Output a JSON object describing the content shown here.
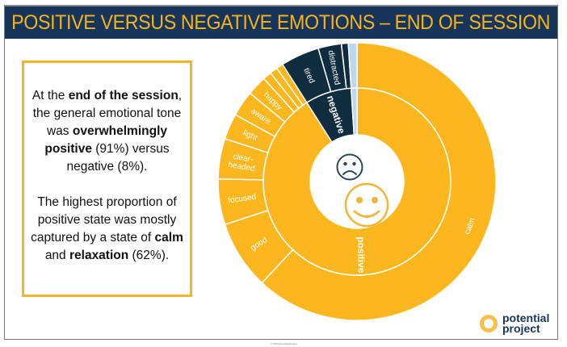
{
  "slide": {
    "title": "POSITIVE VERSUS NEGATIVE EMOTIONS – END OF SESSION",
    "footer": "© 20XX Potential Project",
    "logo": {
      "line1": "potential",
      "line2": "project"
    }
  },
  "summary": {
    "p1": [
      {
        "text": "At the ",
        "bold": false
      },
      {
        "text": "end of the session",
        "bold": true
      },
      {
        "text": ", the general emotional tone was ",
        "bold": false
      },
      {
        "text": "overwhelmingly positive",
        "bold": true
      },
      {
        "text": " (91%) versus negative (8%).",
        "bold": false
      }
    ],
    "p2": [
      {
        "text": "The highest proportion of positive state was mostly captured by a state of ",
        "bold": false
      },
      {
        "text": "calm",
        "bold": true
      },
      {
        "text": " and ",
        "bold": false
      },
      {
        "text": "relaxation",
        "bold": true
      },
      {
        "text": " (62%).",
        "bold": false
      }
    ]
  },
  "colors": {
    "positive": "#fdb71e",
    "negative": "#0f2d3e",
    "other": "#bcd7ee",
    "title_bg": "#17355a",
    "title_text": "#f5b41c",
    "accent_border": "#f7b526"
  },
  "chart_data": {
    "type": "sunburst",
    "title": "Positive versus negative emotions – end of session",
    "center_icons": [
      "sad-face",
      "happy-face"
    ],
    "inner_ring": [
      {
        "label": "positive",
        "value": 91,
        "color": "#fdb71e"
      },
      {
        "label": "negative",
        "value": 8,
        "color": "#0f2d3e"
      },
      {
        "label": "",
        "value": 1,
        "color": "#bcd7ee"
      }
    ],
    "outer_ring": [
      {
        "label": "calm",
        "value": 62,
        "parent": "positive"
      },
      {
        "label": "good",
        "value": 8,
        "parent": "positive"
      },
      {
        "label": "focused",
        "value": 5.3,
        "parent": "positive"
      },
      {
        "label": "clear-headed",
        "value": 4.7,
        "parent": "positive"
      },
      {
        "label": "light",
        "value": 3,
        "parent": "positive"
      },
      {
        "label": "aware",
        "value": 3,
        "parent": "positive"
      },
      {
        "label": "happy",
        "value": 2.3,
        "parent": "positive"
      },
      {
        "label": "",
        "value": 1,
        "parent": "positive"
      },
      {
        "label": "",
        "value": 0.9,
        "parent": "positive"
      },
      {
        "label": "",
        "value": 0.8,
        "parent": "positive"
      },
      {
        "label": "tired",
        "value": 4.5,
        "parent": "negative"
      },
      {
        "label": "distracted",
        "value": 2.7,
        "parent": "negative"
      },
      {
        "label": "",
        "value": 0.8,
        "parent": "negative"
      },
      {
        "label": "",
        "value": 1,
        "parent": "other"
      }
    ]
  }
}
